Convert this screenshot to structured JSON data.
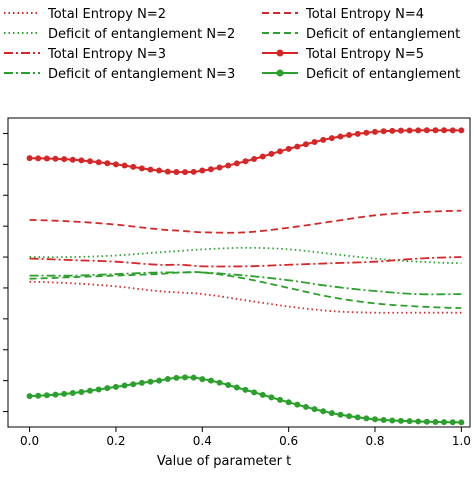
{
  "chart_data": {
    "type": "line",
    "xlabel": "Value of parameter t",
    "ylabel": "",
    "xlim": [
      -0.05,
      1.02
    ],
    "ylim": [
      0.0,
      1.0
    ],
    "x_ticks": [
      0.0,
      0.2,
      0.4,
      0.6,
      0.8,
      1.0
    ],
    "x_tick_labels": [
      "0.0",
      "0.2",
      "0.4",
      "0.6",
      "0.8",
      "1.0"
    ],
    "y_tick_labels_visible": false,
    "grid": false,
    "legend_placement": "top, above plot, two columns",
    "x": [
      0.0,
      0.1,
      0.2,
      0.3,
      0.35,
      0.4,
      0.5,
      0.6,
      0.7,
      0.8,
      0.9,
      1.0
    ],
    "series": [
      {
        "name": "Total Entropy N=2",
        "color": "#d62728",
        "style": "dotted",
        "marker": "none",
        "values": [
          0.47,
          0.465,
          0.455,
          0.44,
          0.435,
          0.43,
          0.41,
          0.39,
          0.375,
          0.37,
          0.37,
          0.37
        ]
      },
      {
        "name": "Deficit of entanglement N=2",
        "color": "#2ca02c",
        "style": "dotted",
        "marker": "none",
        "values": [
          0.55,
          0.55,
          0.555,
          0.565,
          0.57,
          0.575,
          0.58,
          0.575,
          0.56,
          0.545,
          0.535,
          0.53
        ]
      },
      {
        "name": "Total Entropy N=3",
        "color": "#d62728",
        "style": "dashdot",
        "marker": "none",
        "values": [
          0.545,
          0.54,
          0.535,
          0.525,
          0.525,
          0.52,
          0.52,
          0.525,
          0.53,
          0.535,
          0.545,
          0.55
        ]
      },
      {
        "name": "Deficit of entanglement N=3",
        "color": "#2ca02c",
        "style": "dashdot",
        "marker": "none",
        "values": [
          0.49,
          0.49,
          0.495,
          0.5,
          0.5,
          0.5,
          0.49,
          0.475,
          0.455,
          0.44,
          0.43,
          0.43
        ]
      },
      {
        "name": "Total Entropy N=4",
        "color": "#d62728",
        "style": "dashed",
        "marker": "none",
        "values": [
          0.67,
          0.665,
          0.655,
          0.64,
          0.635,
          0.63,
          0.63,
          0.645,
          0.665,
          0.685,
          0.695,
          0.7
        ]
      },
      {
        "name": "Deficit of entanglement",
        "color": "#2ca02c",
        "style": "dashed",
        "marker": "none",
        "values": [
          0.48,
          0.485,
          0.49,
          0.495,
          0.5,
          0.5,
          0.48,
          0.45,
          0.42,
          0.4,
          0.39,
          0.385
        ]
      },
      {
        "name": "Total Entropy N=5",
        "color": "#d62728",
        "style": "solid",
        "marker": "circle",
        "values": [
          0.87,
          0.865,
          0.85,
          0.83,
          0.825,
          0.83,
          0.86,
          0.9,
          0.935,
          0.955,
          0.96,
          0.96
        ]
      },
      {
        "name": "Deficit of entanglement",
        "color": "#2ca02c",
        "style": "solid",
        "marker": "circle",
        "values": [
          0.1,
          0.11,
          0.13,
          0.15,
          0.16,
          0.155,
          0.12,
          0.08,
          0.045,
          0.025,
          0.018,
          0.015
        ]
      }
    ]
  }
}
